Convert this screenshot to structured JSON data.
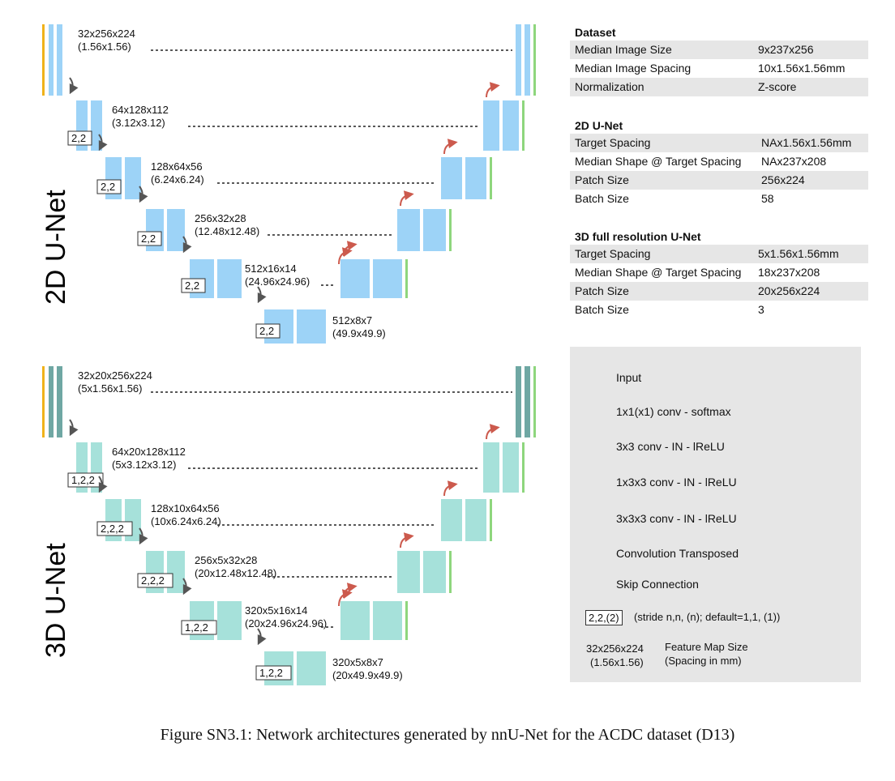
{
  "unet2d": {
    "title": "2D U-Net",
    "levels": [
      {
        "size": "32x256x224",
        "spacing": "(1.56x1.56)",
        "stride": ""
      },
      {
        "size": "64x128x112",
        "spacing": "(3.12x3.12)",
        "stride": "2,2"
      },
      {
        "size": "128x64x56",
        "spacing": "(6.24x6.24)",
        "stride": "2,2"
      },
      {
        "size": "256x32x28",
        "spacing": "(12.48x12.48)",
        "stride": "2,2"
      },
      {
        "size": "512x16x14",
        "spacing": "(24.96x24.96)",
        "stride": "2,2"
      },
      {
        "size": "512x8x7",
        "spacing": "(49.9x49.9)",
        "stride": "2,2"
      }
    ]
  },
  "unet3d": {
    "title": "3D U-Net",
    "levels": [
      {
        "size": "32x20x256x224",
        "spacing": "(5x1.56x1.56)",
        "stride": ""
      },
      {
        "size": "64x20x128x112",
        "spacing": "(5x3.12x3.12)",
        "stride": "1,2,2"
      },
      {
        "size": "128x10x64x56",
        "spacing": "(10x6.24x6.24)",
        "stride": "2,2,2"
      },
      {
        "size": "256x5x32x28",
        "spacing": "(20x12.48x12.48)",
        "stride": "2,2,2"
      },
      {
        "size": "320x5x16x14",
        "spacing": "(20x24.96x24.96)",
        "stride": "1,2,2"
      },
      {
        "size": "320x5x8x7",
        "spacing": "(20x49.9x49.9)",
        "stride": "1,2,2"
      }
    ]
  },
  "tables": {
    "dataset": {
      "title": "Dataset",
      "rows": [
        {
          "key": "Median Image Size",
          "value": "9x237x256"
        },
        {
          "key": "Median Image Spacing",
          "value": "10x1.56x1.56mm"
        },
        {
          "key": "Normalization",
          "value": "Z-score"
        }
      ]
    },
    "net2d": {
      "title": "2D U-Net",
      "rows": [
        {
          "key": "Target Spacing",
          "value": "NAx1.56x1.56mm"
        },
        {
          "key": "Median Shape @ Target Spacing",
          "value": "NAx237x208"
        },
        {
          "key": "Patch Size",
          "value": "256x224"
        },
        {
          "key": "Batch Size",
          "value": "58"
        }
      ]
    },
    "net3d": {
      "title": "3D full resolution U-Net",
      "rows": [
        {
          "key": "Target Spacing",
          "value": "5x1.56x1.56mm"
        },
        {
          "key": "Median Shape @ Target Spacing",
          "value": "18x237x208"
        },
        {
          "key": "Patch Size",
          "value": "20x256x224"
        },
        {
          "key": "Batch Size",
          "value": "3"
        }
      ]
    }
  },
  "legend": {
    "input": "Input",
    "softmax": "1x1(x1) conv - softmax",
    "conv2d": "3x3 conv - IN - lReLU",
    "conv3d_anis": "1x3x3 conv - IN - lReLU",
    "conv3d": "3x3x3 conv - IN - lReLU",
    "transposed": "Convolution Transposed",
    "skip": "Skip Connection",
    "stride_box": "2,2,(2)",
    "stride_desc": "(stride n,n, (n); default=1,1, (1))",
    "fm_size": "32x256x224",
    "fm_spacing": "(1.56x1.56)",
    "fm_size_label": "Feature Map Size",
    "fm_spacing_label": "(Spacing in mm)"
  },
  "caption": "Figure SN3.1: Network architectures generated by nnU-Net for the ACDC dataset (D13)",
  "colors": {
    "input": "#f0b21a",
    "softmax": "#8ed67d",
    "conv2d": "#9dd3f7",
    "conv3d_anis": "#6fa7a3",
    "conv3d": "#a6e1da",
    "transposed": "#cc5a4d",
    "arrow_down": "#555555"
  }
}
